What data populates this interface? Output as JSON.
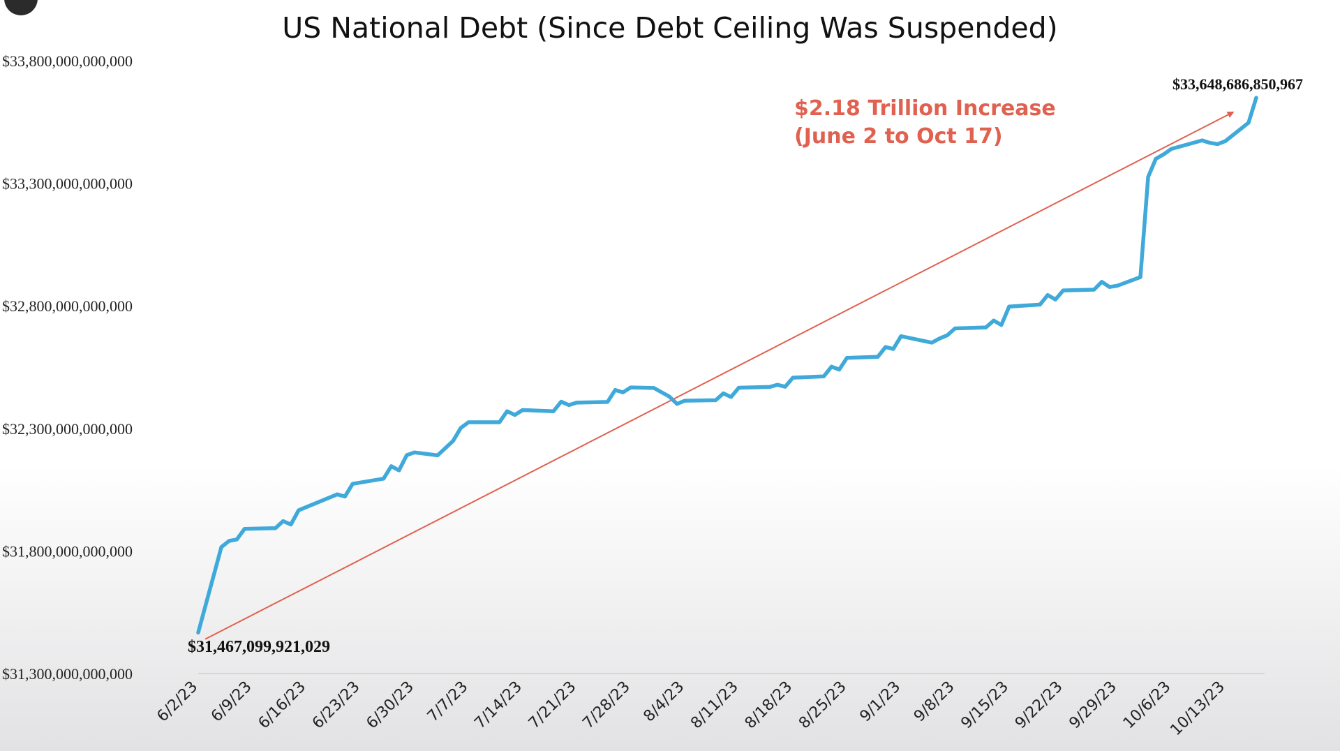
{
  "chart_data": {
    "type": "line",
    "title": "US National Debt (Since Debt Ceiling Was Suspended)",
    "xlabel": "",
    "ylabel": "",
    "ylim": [
      31300000000000,
      33800000000000
    ],
    "y_ticks": [
      31300000000000,
      31800000000000,
      32300000000000,
      32800000000000,
      33300000000000,
      33800000000000
    ],
    "y_tick_labels": [
      "$31,300,000,000,000",
      "$31,800,000,000,000",
      "$32,300,000,000,000",
      "$32,800,000,000,000",
      "$33,300,000,000,000",
      "$33,800,000,000,000"
    ],
    "x_tick_labels": [
      "6/2/23",
      "6/9/23",
      "6/16/23",
      "6/23/23",
      "6/30/23",
      "7/7/23",
      "7/14/23",
      "7/21/23",
      "7/28/23",
      "8/4/23",
      "8/11/23",
      "8/18/23",
      "8/25/23",
      "9/1/23",
      "9/8/23",
      "9/15/23",
      "9/22/23",
      "9/29/23",
      "10/6/23",
      "10/13/23"
    ],
    "grid": false,
    "series": [
      {
        "color": "#3fa9da",
        "points": [
          [
            "6/2/23",
            31467099921029
          ],
          [
            "6/5/23",
            31816000000000
          ],
          [
            "6/6/23",
            31841000000000
          ],
          [
            "6/7/23",
            31847000000000
          ],
          [
            "6/8/23",
            31890000000000
          ],
          [
            "6/12/23",
            31893000000000
          ],
          [
            "6/13/23",
            31922000000000
          ],
          [
            "6/14/23",
            31908000000000
          ],
          [
            "6/15/23",
            31966000000000
          ],
          [
            "6/20/23",
            32031000000000
          ],
          [
            "6/21/23",
            32022000000000
          ],
          [
            "6/22/23",
            32074000000000
          ],
          [
            "6/26/23",
            32095000000000
          ],
          [
            "6/27/23",
            32146000000000
          ],
          [
            "6/28/23",
            32129000000000
          ],
          [
            "6/29/23",
            32191000000000
          ],
          [
            "6/30/23",
            32202000000000
          ],
          [
            "7/3/23",
            32190000000000
          ],
          [
            "7/5/23",
            32249000000000
          ],
          [
            "7/6/23",
            32302000000000
          ],
          [
            "7/7/23",
            32325000000000
          ],
          [
            "7/11/23",
            32325000000000
          ],
          [
            "7/12/23",
            32370000000000
          ],
          [
            "7/13/23",
            32355000000000
          ],
          [
            "7/14/23",
            32375000000000
          ],
          [
            "7/18/23",
            32370000000000
          ],
          [
            "7/19/23",
            32409000000000
          ],
          [
            "7/20/23",
            32395000000000
          ],
          [
            "7/21/23",
            32405000000000
          ],
          [
            "7/25/23",
            32408000000000
          ],
          [
            "7/26/23",
            32457000000000
          ],
          [
            "7/27/23",
            32447000000000
          ],
          [
            "7/28/23",
            32467000000000
          ],
          [
            "7/31/23",
            32465000000000
          ],
          [
            "8/2/23",
            32430000000000
          ],
          [
            "8/3/23",
            32400000000000
          ],
          [
            "8/4/23",
            32413000000000
          ],
          [
            "8/8/23",
            32415000000000
          ],
          [
            "8/9/23",
            32443000000000
          ],
          [
            "8/10/23",
            32428000000000
          ],
          [
            "8/11/23",
            32466000000000
          ],
          [
            "8/15/23",
            32469000000000
          ],
          [
            "8/16/23",
            32478000000000
          ],
          [
            "8/17/23",
            32470000000000
          ],
          [
            "8/18/23",
            32507000000000
          ],
          [
            "8/22/23",
            32512000000000
          ],
          [
            "8/23/23",
            32552000000000
          ],
          [
            "8/24/23",
            32540000000000
          ],
          [
            "8/25/23",
            32588000000000
          ],
          [
            "8/29/23",
            32592000000000
          ],
          [
            "8/30/23",
            32632000000000
          ],
          [
            "8/31/23",
            32624000000000
          ],
          [
            "9/1/23",
            32676000000000
          ],
          [
            "9/5/23",
            32650000000000
          ],
          [
            "9/6/23",
            32667000000000
          ],
          [
            "9/7/23",
            32680000000000
          ],
          [
            "9/8/23",
            32708000000000
          ],
          [
            "9/12/23",
            32712000000000
          ],
          [
            "9/13/23",
            32740000000000
          ],
          [
            "9/14/23",
            32722000000000
          ],
          [
            "9/15/23",
            32797000000000
          ],
          [
            "9/19/23",
            32805000000000
          ],
          [
            "9/20/23",
            32844000000000
          ],
          [
            "9/21/23",
            32826000000000
          ],
          [
            "9/22/23",
            32863000000000
          ],
          [
            "9/26/23",
            32866000000000
          ],
          [
            "9/27/23",
            32898000000000
          ],
          [
            "9/28/23",
            32877000000000
          ],
          [
            "9/29/23",
            32882000000000
          ],
          [
            "10/2/23",
            32917000000000
          ],
          [
            "10/3/23",
            33326000000000
          ],
          [
            "10/4/23",
            33400000000000
          ],
          [
            "10/5/23",
            33418000000000
          ],
          [
            "10/6/23",
            33440000000000
          ],
          [
            "10/10/23",
            33475000000000
          ],
          [
            "10/11/23",
            33465000000000
          ],
          [
            "10/12/23",
            33460000000000
          ],
          [
            "10/13/23",
            33472000000000
          ],
          [
            "10/16/23",
            33547000000000
          ],
          [
            "10/17/23",
            33648686850967
          ]
        ]
      }
    ],
    "trend_arrow": {
      "from": [
        "6/2/23",
        31480000000000
      ],
      "to": [
        "10/14/23",
        33590000000000
      ],
      "color": "#e0614f"
    },
    "annotations": {
      "increase_line1": "$2.18  Trillion Increase",
      "increase_line2": "(June 2 to Oct 17)",
      "end_value": "$33,648,686,850,967",
      "start_value": "$31,467,099,921,029"
    }
  }
}
